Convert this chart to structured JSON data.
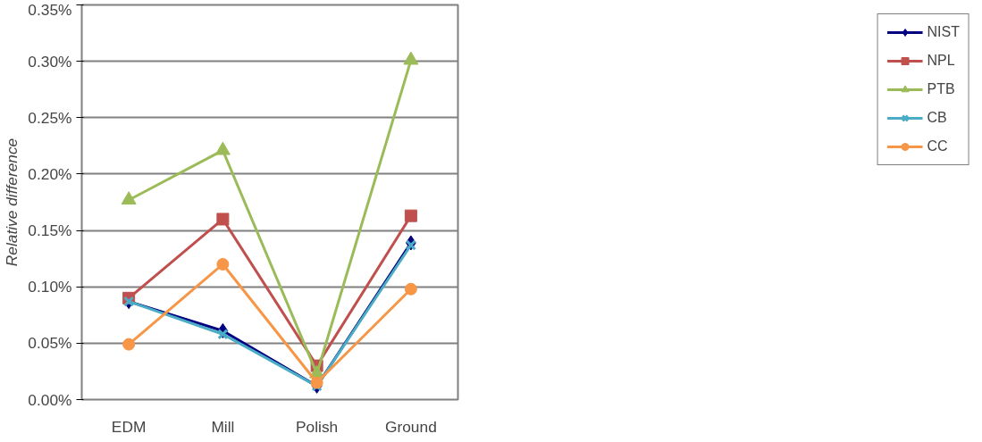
{
  "chart_data": {
    "type": "line",
    "ylabel": "Relative difference",
    "categories": [
      "EDM",
      "Mill",
      "Polish",
      "Ground"
    ],
    "series": [
      {
        "name": "NIST",
        "color": "#000080",
        "marker": "diamond",
        "values": [
          0.087,
          0.061,
          0.012,
          0.139
        ]
      },
      {
        "name": "NPL",
        "color": "#c0504d",
        "marker": "square",
        "values": [
          0.09,
          0.16,
          0.03,
          0.163
        ]
      },
      {
        "name": "PTB",
        "color": "#9bbb59",
        "marker": "triangle",
        "values": [
          0.177,
          0.221,
          0.023,
          0.301
        ]
      },
      {
        "name": "CB",
        "color": "#4bacc6",
        "marker": "cross",
        "values": [
          0.087,
          0.058,
          0.012,
          0.137
        ]
      },
      {
        "name": "CC",
        "color": "#f79646",
        "marker": "circle",
        "values": [
          0.049,
          0.12,
          0.015,
          0.098
        ]
      }
    ],
    "ylim": [
      0,
      0.35
    ],
    "yticks": [
      {
        "value": 0,
        "label": "0.00%"
      },
      {
        "value": 0.05,
        "label": "0.05%"
      },
      {
        "value": 0.1,
        "label": "0.10%"
      },
      {
        "value": 0.15,
        "label": "0.15%"
      },
      {
        "value": 0.2,
        "label": "0.20%"
      },
      {
        "value": 0.25,
        "label": "0.25%"
      },
      {
        "value": 0.3,
        "label": "0.30%"
      },
      {
        "value": 0.35,
        "label": "0.35%"
      }
    ],
    "grid": "y",
    "legend": "right",
    "line_style": "solid"
  }
}
